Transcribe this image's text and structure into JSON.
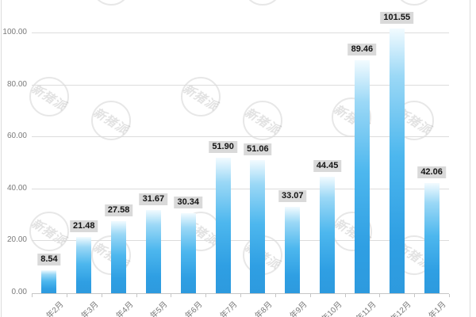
{
  "watermark": {
    "text": "新猪派"
  },
  "chart_data": {
    "type": "bar",
    "title": "",
    "xlabel": "",
    "ylabel": "",
    "categories": [
      "年2月",
      "年3月",
      "年4月",
      "年5月",
      "年6月",
      "年7月",
      "年8月",
      "年9月",
      "年10月",
      "年11月",
      "年12月",
      "年1月"
    ],
    "values": [
      8.54,
      21.48,
      27.58,
      31.67,
      30.34,
      51.9,
      51.06,
      33.07,
      44.45,
      89.46,
      101.55,
      42.06
    ],
    "data_labels": [
      "8.54",
      "21.48",
      "27.58",
      "31.67",
      "30.34",
      "51.90",
      "51.06",
      "33.07",
      "44.45",
      "89.46",
      "101.55",
      "42.06"
    ],
    "ytick_labels": [
      "0.00",
      "20.00",
      "40.00",
      "60.00",
      "80.00",
      "100.00"
    ],
    "ylim": [
      0,
      105
    ],
    "ytick_step": 20,
    "grid": true,
    "legend": "none",
    "bar_color": "#2f9fe3",
    "bar_color_light": "#f2fbff",
    "label_box_color": "#d9d9d9"
  }
}
